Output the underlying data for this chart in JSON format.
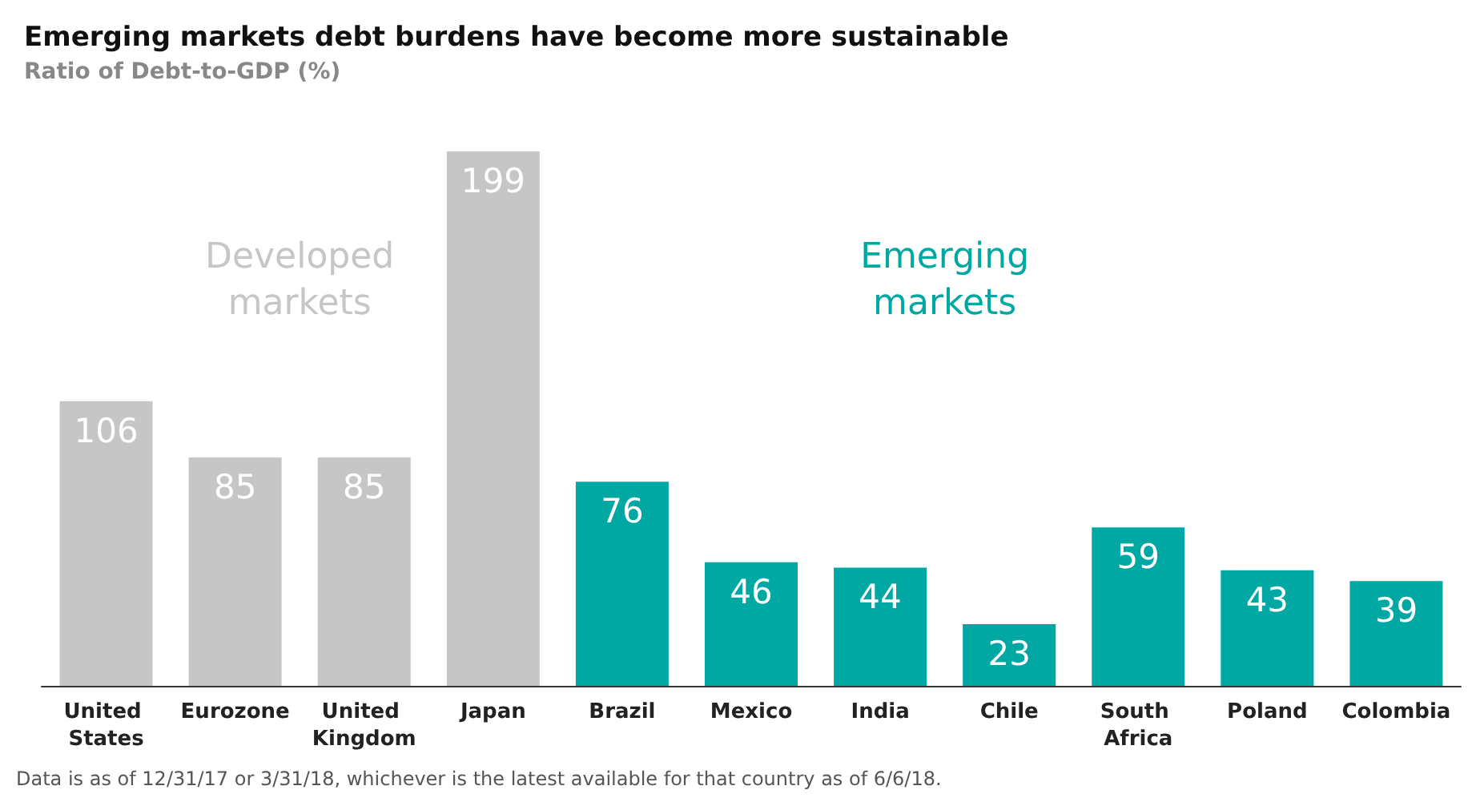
{
  "chart_data": {
    "type": "bar",
    "title": "Emerging markets debt burdens have become more sustainable",
    "subtitle": "Ratio of Debt-to-GDP (%)",
    "categories": [
      "United States",
      "Eurozone",
      "United Kingdom",
      "Japan",
      "Brazil",
      "Mexico",
      "India",
      "Chile",
      "South Africa",
      "Poland",
      "Colombia"
    ],
    "values": [
      106,
      85,
      85,
      199,
      76,
      46,
      44,
      23,
      59,
      43,
      39
    ],
    "colors": [
      "#c6c6c6",
      "#c6c6c6",
      "#c6c6c6",
      "#c6c6c6",
      "#00a8a3",
      "#00a8a3",
      "#00a8a3",
      "#00a8a3",
      "#00a8a3",
      "#00a8a3",
      "#00a8a3"
    ],
    "data_labels": true,
    "annotations": [
      "Developed markets",
      "Emerging markets",
      "Data is as of 12/31/17 or 3/31/18, whichever is the latest available for that country as of 6/6/18."
    ]
  }
}
